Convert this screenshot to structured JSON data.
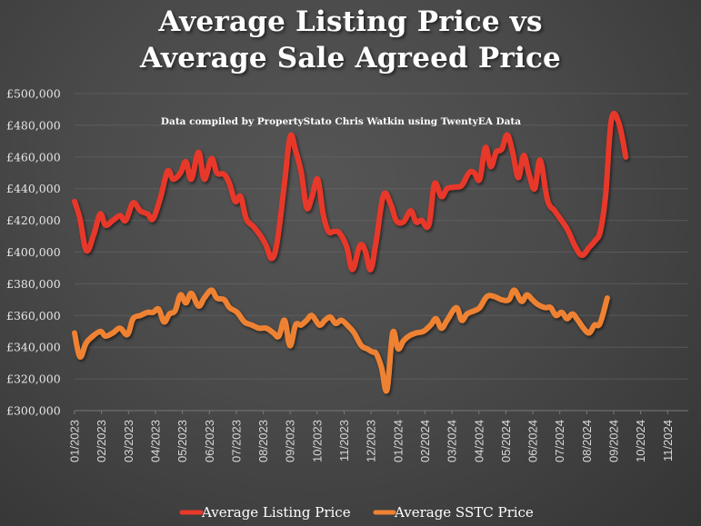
{
  "chart_data": {
    "type": "line",
    "title_lines": [
      "Average Listing Price vs",
      "Average Sale Agreed Price"
    ],
    "annotation": "Data compiled by PropertyStato Chris Watkin using TwentyEA Data",
    "xlabel": "",
    "ylabel": "",
    "ylim": [
      300000,
      500000
    ],
    "y_ticks": [
      300000,
      320000,
      340000,
      360000,
      380000,
      400000,
      420000,
      440000,
      460000,
      480000,
      500000
    ],
    "y_tick_labels": [
      "£300,000",
      "£320,000",
      "£340,000",
      "£360,000",
      "£380,000",
      "£400,000",
      "£420,000",
      "£440,000",
      "£460,000",
      "£480,000",
      "£500,000"
    ],
    "x_tick_labels": [
      "01/2023",
      "02/2023",
      "03/2023",
      "04/2023",
      "05/2023",
      "06/2023",
      "07/2023",
      "08/2023",
      "09/2023",
      "10/2023",
      "11/2023",
      "12/2023",
      "01/2024",
      "02/2024",
      "03/2024",
      "04/2024",
      "05/2024",
      "06/2024",
      "07/2024",
      "08/2024",
      "09/2024",
      "10/2024",
      "11/2024"
    ],
    "x_range_months": [
      0,
      23
    ],
    "grid": true,
    "legend_position": "bottom",
    "colors": {
      "listing": "#e8392a",
      "sstc": "#ef8233"
    },
    "series": [
      {
        "name": "Average Listing Price",
        "key": "listing",
        "x_months": [
          0,
          0.2,
          0.44,
          0.71,
          0.95,
          1.15,
          1.42,
          1.69,
          1.9,
          2.17,
          2.44,
          2.71,
          2.91,
          3.18,
          3.45,
          3.66,
          3.93,
          4.13,
          4.33,
          4.6,
          4.81,
          5.08,
          5.28,
          5.55,
          5.75,
          5.96,
          6.16,
          6.37,
          6.64,
          6.91,
          7.11,
          7.32,
          7.52,
          7.79,
          8.0,
          8.2,
          8.41,
          8.61,
          8.81,
          9.02,
          9.22,
          9.42,
          9.63,
          9.83,
          10.1,
          10.31,
          10.58,
          10.78,
          10.98,
          11.19,
          11.46,
          11.73,
          11.93,
          12.2,
          12.47,
          12.67,
          12.87,
          13.14,
          13.35,
          13.61,
          13.82,
          14.09,
          14.36,
          14.63,
          14.83,
          15.03,
          15.24,
          15.44,
          15.64,
          15.85,
          16.05,
          16.25,
          16.46,
          16.66,
          16.86,
          17.07,
          17.27,
          17.54,
          17.81,
          18.02,
          18.29,
          18.56,
          18.82,
          19.09,
          19.3,
          19.5,
          19.7,
          19.91,
          20.18,
          20.45,
          20.65,
          20.91
        ],
        "values": [
          432000,
          421000,
          401000,
          411000,
          424000,
          417000,
          420000,
          423000,
          420000,
          431000,
          426000,
          424000,
          421000,
          434000,
          451000,
          446000,
          450000,
          457000,
          446000,
          463000,
          446000,
          459000,
          450000,
          449000,
          443000,
          432000,
          435000,
          421000,
          416000,
          410000,
          404000,
          396000,
          407000,
          444000,
          473000,
          464000,
          450000,
          428000,
          435000,
          446000,
          424000,
          413000,
          413000,
          412000,
          403000,
          389000,
          404000,
          401000,
          389000,
          407000,
          436000,
          430000,
          420000,
          419000,
          426000,
          419000,
          420000,
          417000,
          443000,
          435000,
          440000,
          441000,
          442000,
          450000,
          450000,
          446000,
          466000,
          454000,
          463000,
          465000,
          474000,
          463000,
          447000,
          461000,
          449000,
          440000,
          458000,
          433000,
          426000,
          421000,
          414000,
          404000,
          398000,
          403000,
          407000,
          413000,
          436000,
          483000,
          482000,
          460000
        ]
      },
      {
        "name": "Average SSTC Price",
        "key": "sstc",
        "x_months": [
          0,
          0.2,
          0.41,
          0.61,
          0.95,
          1.15,
          1.42,
          1.69,
          1.96,
          2.17,
          2.44,
          2.71,
          2.91,
          3.12,
          3.32,
          3.52,
          3.73,
          3.93,
          4.13,
          4.33,
          4.6,
          4.81,
          5.08,
          5.28,
          5.55,
          5.75,
          6.03,
          6.3,
          6.57,
          6.84,
          7.11,
          7.38,
          7.58,
          7.79,
          7.99,
          8.2,
          8.4,
          8.61,
          8.81,
          9.08,
          9.29,
          9.49,
          9.69,
          9.9,
          10.17,
          10.37,
          10.64,
          10.85,
          11.05,
          11.19,
          11.39,
          11.59,
          11.8,
          12.0,
          12.2,
          12.4,
          12.67,
          12.94,
          13.21,
          13.41,
          13.61,
          13.82,
          14.16,
          14.36,
          14.56,
          14.83,
          15.03,
          15.3,
          15.57,
          15.84,
          16.11,
          16.31,
          16.58,
          16.78,
          16.98,
          17.18,
          17.45,
          17.66,
          17.86,
          18.07,
          18.27,
          18.47,
          18.67,
          18.88,
          19.09,
          19.29,
          19.49,
          19.76
        ],
        "values": [
          349000,
          334000,
          342000,
          346000,
          350000,
          347000,
          349000,
          352000,
          348000,
          358000,
          360000,
          362000,
          362000,
          364000,
          356000,
          361000,
          363000,
          373000,
          368000,
          374000,
          366000,
          371000,
          376000,
          371000,
          370000,
          365000,
          362000,
          356000,
          354000,
          352000,
          352000,
          349000,
          347000,
          357000,
          341000,
          354000,
          354000,
          357000,
          360000,
          354000,
          357000,
          359000,
          355000,
          357000,
          353000,
          349000,
          341000,
          339000,
          337000,
          336000,
          327000,
          313000,
          349000,
          339000,
          344000,
          347000,
          349000,
          350000,
          354000,
          358000,
          352000,
          357000,
          365000,
          357000,
          361000,
          363000,
          365000,
          372000,
          372000,
          370000,
          370000,
          376000,
          369000,
          373000,
          370000,
          367000,
          365000,
          365000,
          360000,
          362000,
          358000,
          361000,
          357000,
          352000,
          349000,
          354000,
          355000,
          371000
        ]
      }
    ]
  }
}
